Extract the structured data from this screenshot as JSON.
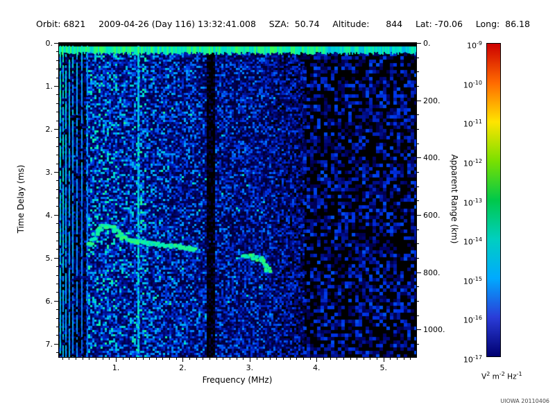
{
  "header": {
    "segments": [
      "Orbit: 6821",
      "2009-04-26 (Day 116) 13:32:41.008",
      "SZA:  50.74",
      "Altitude:      844",
      "Lat: -70.06",
      "Long:  86.18"
    ]
  },
  "footer": {
    "watermark": "UIOWA 20110406"
  },
  "chart_data": {
    "type": "heatmap",
    "title": "Orbit: 6821  2009-04-26 (Day 116) 13:32:41.008  SZA: 50.74  Altitude: 844  Lat: -70.06  Long: 86.18",
    "xlabel": "Frequency (MHz)",
    "ylabel": "Time Delay (ms)",
    "y2label": "Apparent Range (km)",
    "x_range_mhz": [
      0.15,
      5.49
    ],
    "y_range_ms": [
      0,
      7.31
    ],
    "y2_range_km": [
      0,
      1096
    ],
    "x_ticks": [
      "1.",
      "2.",
      "3.",
      "4.",
      "5."
    ],
    "x_tick_values": [
      1,
      2,
      3,
      4,
      5
    ],
    "y_ticks": [
      "0.",
      "1.",
      "2.",
      "3.",
      "4.",
      "5.",
      "6.",
      "7."
    ],
    "y_tick_values": [
      0,
      1,
      2,
      3,
      4,
      5,
      6,
      7
    ],
    "y2_ticks": [
      "0.",
      "200.",
      "400.",
      "600.",
      "800.",
      "1000."
    ],
    "y2_tick_values": [
      0,
      200,
      400,
      600,
      800,
      1000
    ],
    "grid": false,
    "colorbar": {
      "scale": "log",
      "label_base": "10",
      "exponents": [
        "-9",
        "-10",
        "-11",
        "-12",
        "-13",
        "-14",
        "-15",
        "-16",
        "-17"
      ],
      "unit_parts": [
        [
          "V",
          "2"
        ],
        [
          "m",
          "-2"
        ],
        [
          "Hz",
          "-1"
        ]
      ],
      "colors_top_to_bottom": [
        "#cc0000",
        "#ff6a00",
        "#ffe400",
        "#7ae000",
        "#00c84a",
        "#00cfc0",
        "#00aaff",
        "#2a3cd8",
        "#000070"
      ]
    },
    "palette": {
      "background": "#000000",
      "noise_low": "#000064",
      "noise_mid": "#0032e6",
      "noise_high": "#00a0ff",
      "echo": "#3cff50"
    },
    "features": {
      "top_surface_band_ms": [
        0.15,
        0.35
      ],
      "plasma_harmonic_lines_mhz": [
        0.16,
        0.2,
        0.245,
        0.295,
        0.35,
        0.41,
        0.48,
        0.56
      ],
      "narrowband_line_mhz": 1.32,
      "dark_bands_mhz": [
        [
          2.33,
          2.47
        ]
      ],
      "sparse_noise_above_mhz": 3.8,
      "ionospheric_echo_trace_points_mhz_ms": [
        [
          0.6,
          4.7
        ],
        [
          0.65,
          4.55
        ],
        [
          0.7,
          4.42
        ],
        [
          0.76,
          4.33
        ],
        [
          0.82,
          4.28
        ],
        [
          0.88,
          4.26
        ],
        [
          0.94,
          4.3
        ],
        [
          1.0,
          4.38
        ],
        [
          1.06,
          4.47
        ],
        [
          1.12,
          4.54
        ],
        [
          1.2,
          4.58
        ],
        [
          1.28,
          4.61
        ],
        [
          1.36,
          4.63
        ],
        [
          1.44,
          4.65
        ],
        [
          1.52,
          4.67
        ],
        [
          1.6,
          4.68
        ],
        [
          1.68,
          4.7
        ],
        [
          1.76,
          4.71
        ],
        [
          1.84,
          4.72
        ],
        [
          1.92,
          4.74
        ],
        [
          2.0,
          4.76
        ],
        [
          2.08,
          4.78
        ],
        [
          2.16,
          4.8
        ],
        [
          2.92,
          4.95
        ],
        [
          3.0,
          4.97
        ],
        [
          3.08,
          5.0
        ],
        [
          3.14,
          5.02
        ],
        [
          3.2,
          5.08
        ],
        [
          3.24,
          5.18
        ],
        [
          3.27,
          5.28
        ]
      ],
      "noise_description": "blue speckle noise, brighter below 2.3 MHz, sparse dark blobs above 3.8 MHz"
    }
  }
}
